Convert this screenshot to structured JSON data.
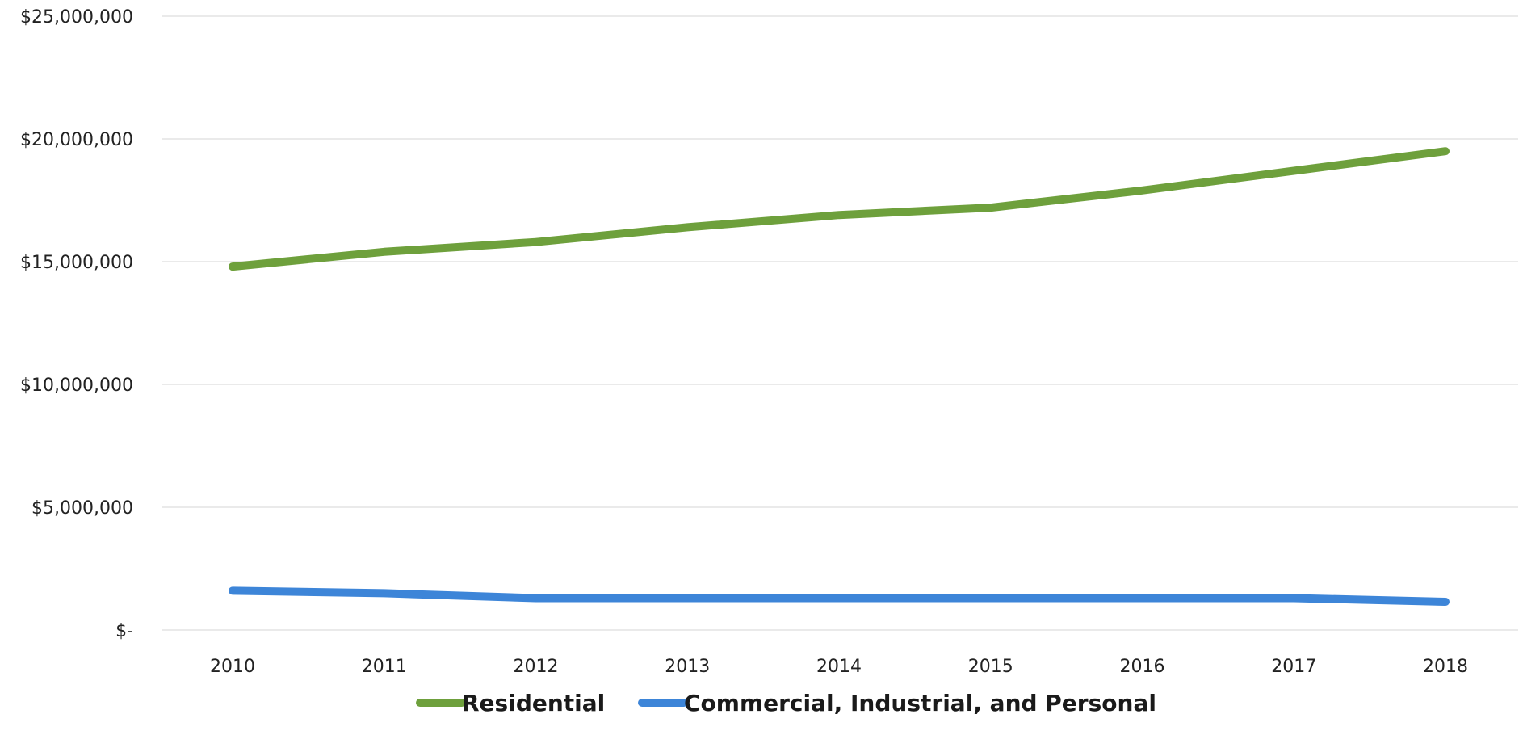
{
  "chart_data": {
    "type": "line",
    "title": "",
    "xlabel": "",
    "ylabel": "",
    "x": [
      "2010",
      "2011",
      "2012",
      "2013",
      "2014",
      "2015",
      "2016",
      "2017",
      "2018"
    ],
    "ylim": [
      0,
      25000000
    ],
    "y_ticks": [
      0,
      5000000,
      10000000,
      15000000,
      20000000,
      25000000
    ],
    "y_tick_labels": [
      "$-",
      "$5,000,000",
      "$10,000,000",
      "$15,000,000",
      "$20,000,000",
      "$25,000,000"
    ],
    "grid": true,
    "legend_position": "bottom",
    "series": [
      {
        "name": "Residential",
        "color": "#6ea03c",
        "values": [
          14800000,
          15400000,
          15800000,
          16400000,
          16900000,
          17200000,
          17900000,
          18700000,
          19500000
        ]
      },
      {
        "name": "Commercial, Industrial, and Personal",
        "color": "#3d85d8",
        "values": [
          1600000,
          1500000,
          1300000,
          1300000,
          1300000,
          1300000,
          1300000,
          1300000,
          1150000
        ]
      }
    ]
  }
}
